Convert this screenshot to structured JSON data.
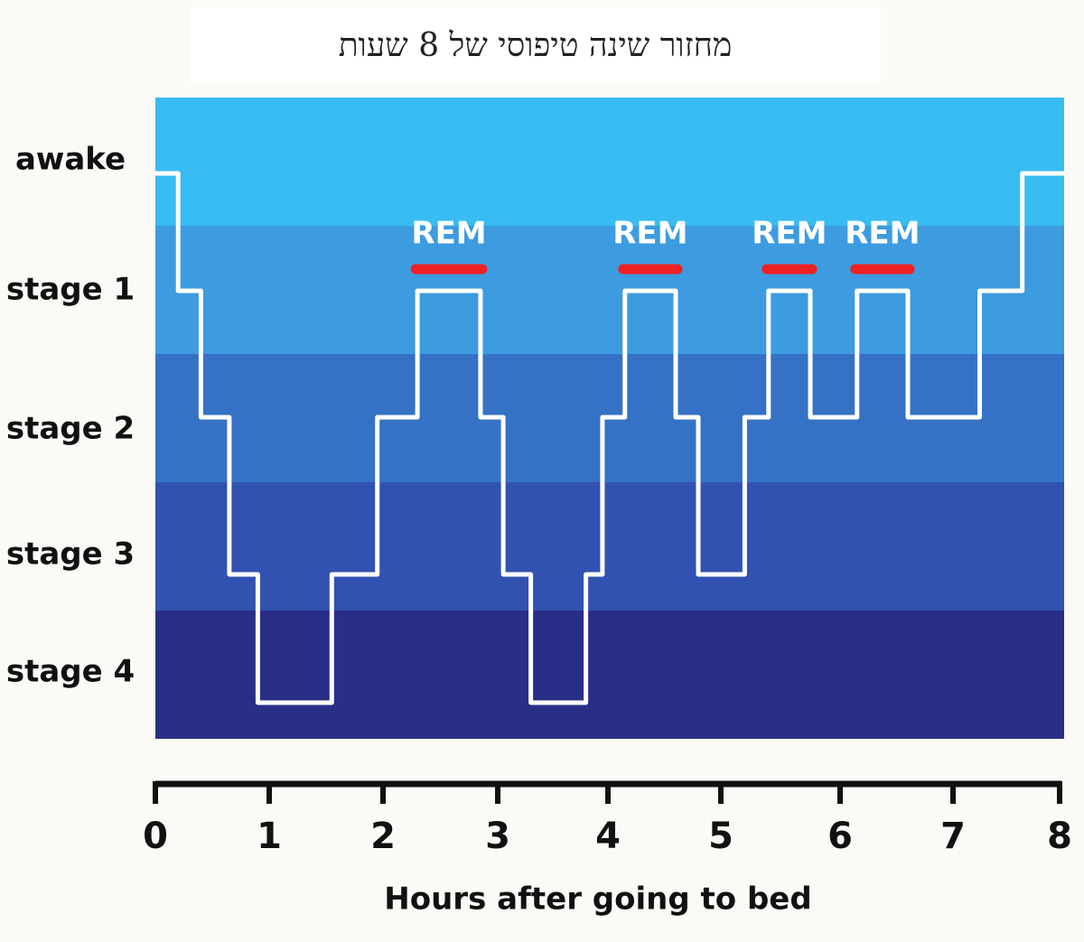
{
  "chart_data": {
    "type": "line",
    "title": "מחזור שינה טיפוסי של 8 שעות",
    "xlabel": "Hours after going to bed",
    "ylabel": "",
    "xlim": [
      0,
      8
    ],
    "x_ticks": [
      "0",
      "1",
      "2",
      "3",
      "4",
      "5",
      "6",
      "7",
      "8"
    ],
    "stages": [
      "awake",
      "stage 1",
      "stage 2",
      "stage 3",
      "stage 4"
    ],
    "band_colors": [
      "#38bcf2",
      "#3d9be0",
      "#3572c6",
      "#3152b0",
      "#2a2f86"
    ],
    "line_color": "#ffffff",
    "rem_color": "#ee2222",
    "series": [
      {
        "values": [
          {
            "x": 0.0,
            "y": "awake"
          },
          {
            "x": 0.2,
            "y": "stage 1"
          },
          {
            "x": 0.4,
            "y": "stage 2"
          },
          {
            "x": 0.65,
            "y": "stage 3"
          },
          {
            "x": 0.9,
            "y": "stage 4"
          },
          {
            "x": 1.55,
            "y": "stage 3"
          },
          {
            "x": 1.95,
            "y": "stage 2"
          },
          {
            "x": 2.3,
            "y": "stage 1"
          },
          {
            "x": 2.85,
            "y": "stage 2"
          },
          {
            "x": 3.05,
            "y": "stage 3"
          },
          {
            "x": 3.3,
            "y": "stage 4"
          },
          {
            "x": 3.8,
            "y": "stage 3"
          },
          {
            "x": 3.95,
            "y": "stage 2"
          },
          {
            "x": 4.15,
            "y": "stage 1"
          },
          {
            "x": 4.6,
            "y": "stage 2"
          },
          {
            "x": 4.8,
            "y": "stage 3"
          },
          {
            "x": 5.2,
            "y": "stage 2"
          },
          {
            "x": 5.4,
            "y": "stage 1"
          },
          {
            "x": 5.75,
            "y": "stage 2"
          },
          {
            "x": 6.15,
            "y": "stage 1"
          },
          {
            "x": 6.6,
            "y": "stage 2"
          },
          {
            "x": 7.25,
            "y": "stage 1"
          },
          {
            "x": 7.65,
            "y": "awake"
          },
          {
            "x": 8.0,
            "y": "awake"
          }
        ]
      }
    ],
    "annotations": [
      {
        "label": "REM",
        "x_start": 2.3,
        "x_end": 2.85
      },
      {
        "label": "REM",
        "x_start": 4.15,
        "x_end": 4.6
      },
      {
        "label": "REM",
        "x_start": 5.4,
        "x_end": 5.75
      },
      {
        "label": "REM",
        "x_start": 6.15,
        "x_end": 6.6
      }
    ]
  }
}
